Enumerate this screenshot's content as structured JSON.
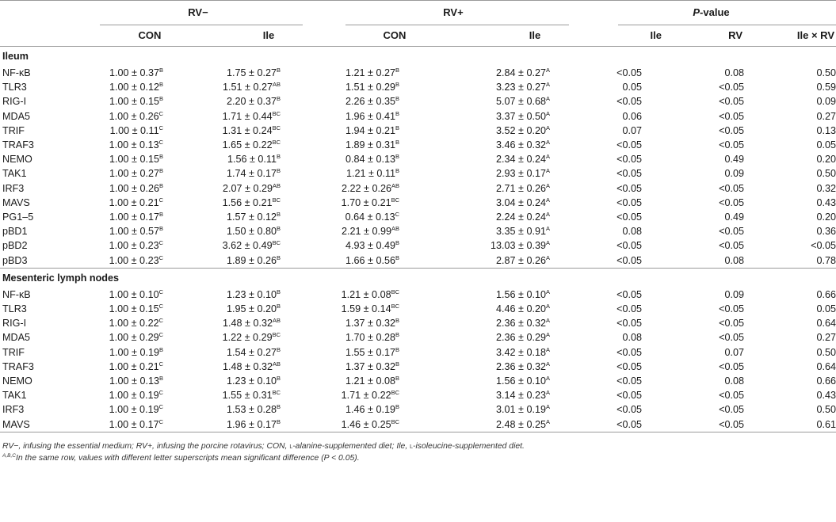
{
  "header": {
    "group_rv_minus": "RV−",
    "group_rv_plus": "RV+",
    "group_p_prefix": "P",
    "group_p_suffix": "-value",
    "sub_con_1": "CON",
    "sub_ile_1": "Ile",
    "sub_con_2": "CON",
    "sub_ile_2": "Ile",
    "sub_p_ile": "Ile",
    "sub_p_rv": "RV",
    "sub_p_int": "Ile × RV"
  },
  "sections": [
    {
      "title": "Ileum",
      "rows": [
        {
          "label": "NF-κB",
          "v1": "1.00 ± 0.37",
          "s1": "B",
          "v2": "1.75 ± 0.27",
          "s2": "B",
          "v3": "1.21 ± 0.27",
          "s3": "B",
          "v4": "2.84 ± 0.27",
          "s4": "A",
          "p1": "<0.05",
          "p2": "0.08",
          "p3": "0.50"
        },
        {
          "label": "TLR3",
          "v1": "1.00 ± 0.12",
          "s1": "B",
          "v2": "1.51 ± 0.27",
          "s2": "AB",
          "v3": "1.51 ± 0.29",
          "s3": "B",
          "v4": "3.23 ± 0.27",
          "s4": "A",
          "p1": "0.05",
          "p2": "<0.05",
          "p3": "0.59"
        },
        {
          "label": "RIG-I",
          "v1": "1.00 ± 0.15",
          "s1": "B",
          "v2": "2.20 ± 0.37",
          "s2": "B",
          "v3": "2.26 ± 0.35",
          "s3": "B",
          "v4": "5.07 ± 0.68",
          "s4": "A",
          "p1": "<0.05",
          "p2": "<0.05",
          "p3": "0.09"
        },
        {
          "label": "MDA5",
          "v1": "1.00 ± 0.26",
          "s1": "C",
          "v2": "1.71 ± 0.44",
          "s2": "BC",
          "v3": "1.96 ± 0.41",
          "s3": "B",
          "v4": "3.37 ± 0.50",
          "s4": "A",
          "p1": "0.06",
          "p2": "<0.05",
          "p3": "0.27"
        },
        {
          "label": "TRIF",
          "v1": "1.00 ± 0.11",
          "s1": "C",
          "v2": "1.31 ± 0.24",
          "s2": "BC",
          "v3": "1.94 ± 0.21",
          "s3": "B",
          "v4": "3.52 ± 0.20",
          "s4": "A",
          "p1": "0.07",
          "p2": "<0.05",
          "p3": "0.13"
        },
        {
          "label": "TRAF3",
          "v1": "1.00 ± 0.13",
          "s1": "C",
          "v2": "1.65 ± 0.22",
          "s2": "BC",
          "v3": "1.89 ± 0.31",
          "s3": "B",
          "v4": "3.46 ± 0.32",
          "s4": "A",
          "p1": "<0.05",
          "p2": "<0.05",
          "p3": "0.05"
        },
        {
          "label": "NEMO",
          "v1": "1.00 ± 0.15",
          "s1": "B",
          "v2": "1.56 ± 0.11",
          "s2": "B",
          "v3": "0.84 ± 0.13",
          "s3": "B",
          "v4": "2.34 ± 0.24",
          "s4": "A",
          "p1": "<0.05",
          "p2": "0.49",
          "p3": "0.20"
        },
        {
          "label": "TAK1",
          "v1": "1.00 ± 0.27",
          "s1": "B",
          "v2": "1.74 ± 0.17",
          "s2": "B",
          "v3": "1.21 ± 0.11",
          "s3": "B",
          "v4": "2.93 ± 0.17",
          "s4": "A",
          "p1": "<0.05",
          "p2": "0.09",
          "p3": "0.50"
        },
        {
          "label": "IRF3",
          "v1": "1.00 ± 0.26",
          "s1": "B",
          "v2": "2.07 ± 0.29",
          "s2": "AB",
          "v3": "2.22 ± 0.26",
          "s3": "AB",
          "v4": "2.71 ± 0.26",
          "s4": "A",
          "p1": "<0.05",
          "p2": "<0.05",
          "p3": "0.32"
        },
        {
          "label": "MAVS",
          "v1": "1.00 ± 0.21",
          "s1": "C",
          "v2": "1.56 ± 0.21",
          "s2": "BC",
          "v3": "1.70 ± 0.21",
          "s3": "BC",
          "v4": "3.04 ± 0.24",
          "s4": "A",
          "p1": "<0.05",
          "p2": "<0.05",
          "p3": "0.43"
        },
        {
          "label": "PG1–5",
          "v1": "1.00 ± 0.17",
          "s1": "B",
          "v2": "1.57 ± 0.12",
          "s2": "B",
          "v3": "0.64 ± 0.13",
          "s3": "C",
          "v4": "2.24 ± 0.24",
          "s4": "A",
          "p1": "<0.05",
          "p2": "0.49",
          "p3": "0.20"
        },
        {
          "label": "pBD1",
          "v1": "1.00 ± 0.57",
          "s1": "B",
          "v2": "1.50 ± 0.80",
          "s2": "B",
          "v3": "2.21 ± 0.99",
          "s3": "AB",
          "v4": "3.35 ± 0.91",
          "s4": "A",
          "p1": "0.08",
          "p2": "<0.05",
          "p3": "0.36"
        },
        {
          "label": "pBD2",
          "v1": "1.00 ± 0.23",
          "s1": "C",
          "v2": "3.62 ± 0.49",
          "s2": "BC",
          "v3": "4.93 ± 0.49",
          "s3": "B",
          "v4": "13.03 ± 0.39",
          "s4": "A",
          "p1": "<0.05",
          "p2": "<0.05",
          "p3": "<0.05"
        },
        {
          "label": "pBD3",
          "v1": "1.00 ± 0.23",
          "s1": "C",
          "v2": "1.89 ± 0.26",
          "s2": "B",
          "v3": "1.66 ± 0.56",
          "s3": "B",
          "v4": "2.87 ± 0.26",
          "s4": "A",
          "p1": "<0.05",
          "p2": "0.08",
          "p3": "0.78"
        }
      ]
    },
    {
      "title": "Mesenteric lymph nodes",
      "rows": [
        {
          "label": "NF-κB",
          "v1": "1.00 ± 0.10",
          "s1": "C",
          "v2": "1.23 ± 0.10",
          "s2": "B",
          "v3": "1.21 ± 0.08",
          "s3": "BC",
          "v4": "1.56 ± 0.10",
          "s4": "A",
          "p1": "<0.05",
          "p2": "0.09",
          "p3": "0.66"
        },
        {
          "label": "TLR3",
          "v1": "1.00 ± 0.15",
          "s1": "C",
          "v2": "1.95 ± 0.20",
          "s2": "B",
          "v3": "1.59 ± 0.14",
          "s3": "BC",
          "v4": "4.46 ± 0.20",
          "s4": "A",
          "p1": "<0.05",
          "p2": "<0.05",
          "p3": "0.05"
        },
        {
          "label": "RIG-I",
          "v1": "1.00 ± 0.22",
          "s1": "C",
          "v2": "1.48 ± 0.32",
          "s2": "AB",
          "v3": "1.37 ± 0.32",
          "s3": "B",
          "v4": "2.36 ± 0.32",
          "s4": "A",
          "p1": "<0.05",
          "p2": "<0.05",
          "p3": "0.64"
        },
        {
          "label": "MDA5",
          "v1": "1.00 ± 0.29",
          "s1": "C",
          "v2": "1.22 ± 0.29",
          "s2": "BC",
          "v3": "1.70 ± 0.28",
          "s3": "B",
          "v4": "2.36 ± 0.29",
          "s4": "A",
          "p1": "0.08",
          "p2": "<0.05",
          "p3": "0.27"
        },
        {
          "label": "TRIF",
          "v1": "1.00 ± 0.19",
          "s1": "B",
          "v2": "1.54 ± 0.27",
          "s2": "B",
          "v3": "1.55 ± 0.17",
          "s3": "B",
          "v4": "3.42 ± 0.18",
          "s4": "A",
          "p1": "<0.05",
          "p2": "0.07",
          "p3": "0.50"
        },
        {
          "label": "TRAF3",
          "v1": "1.00 ± 0.21",
          "s1": "C",
          "v2": "1.48 ± 0.32",
          "s2": "AB",
          "v3": "1.37 ± 0.32",
          "s3": "B",
          "v4": "2.36 ± 0.32",
          "s4": "A",
          "p1": "<0.05",
          "p2": "<0.05",
          "p3": "0.64"
        },
        {
          "label": "NEMO",
          "v1": "1.00 ± 0.13",
          "s1": "B",
          "v2": "1.23 ± 0.10",
          "s2": "B",
          "v3": "1.21 ± 0.08",
          "s3": "B",
          "v4": "1.56 ± 0.10",
          "s4": "A",
          "p1": "<0.05",
          "p2": "0.08",
          "p3": "0.66"
        },
        {
          "label": "TAK1",
          "v1": "1.00 ± 0.19",
          "s1": "C",
          "v2": "1.55 ± 0.31",
          "s2": "BC",
          "v3": "1.71 ± 0.22",
          "s3": "BC",
          "v4": "3.14 ± 0.23",
          "s4": "A",
          "p1": "<0.05",
          "p2": "<0.05",
          "p3": "0.43"
        },
        {
          "label": "IRF3",
          "v1": "1.00 ± 0.19",
          "s1": "C",
          "v2": "1.53 ± 0.28",
          "s2": "B",
          "v3": "1.46 ± 0.19",
          "s3": "B",
          "v4": "3.01 ± 0.19",
          "s4": "A",
          "p1": "<0.05",
          "p2": "<0.05",
          "p3": "0.50"
        },
        {
          "label": "MAVS",
          "v1": "1.00 ± 0.17",
          "s1": "C",
          "v2": "1.96 ± 0.17",
          "s2": "B",
          "v3": "1.46 ± 0.25",
          "s3": "BC",
          "v4": "2.48 ± 0.25",
          "s4": "A",
          "p1": "<0.05",
          "p2": "<0.05",
          "p3": "0.61"
        }
      ]
    }
  ],
  "footnotes": {
    "line1_a": "RV−, infusing the essential medium; RV+, infusing the porcine rotavirus; CON, ",
    "line1_l1": "l",
    "line1_b": "-alanine-supplemented diet; Ile, ",
    "line1_l2": "l",
    "line1_c": "-isoleucine-supplemented diet.",
    "line2_sup": "A,B,C",
    "line2_text": "In the same row, values with different letter superscripts mean significant difference (P < 0.05)."
  }
}
